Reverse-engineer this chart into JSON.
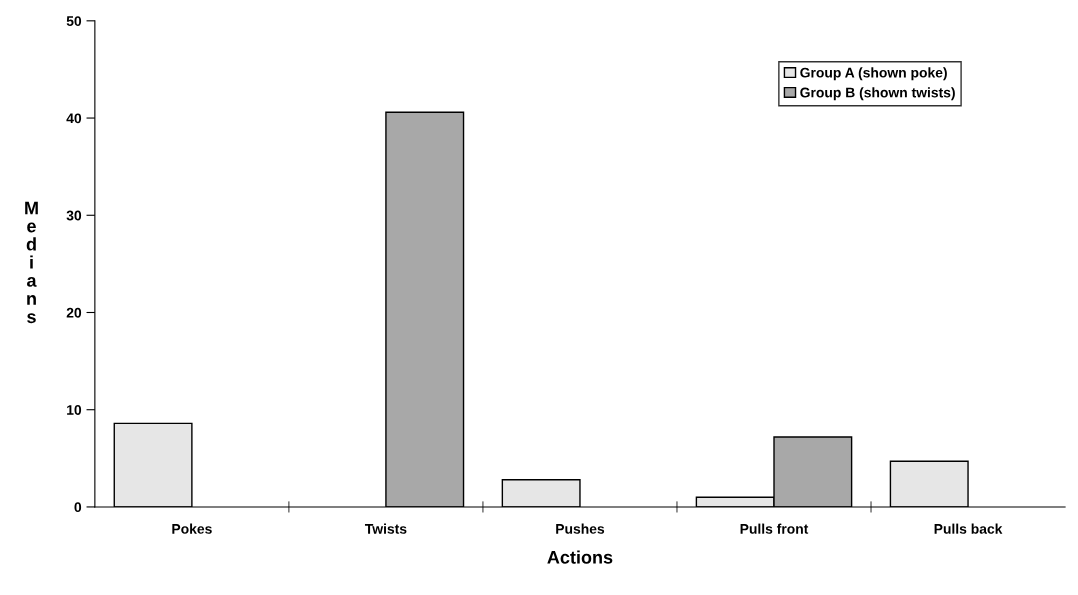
{
  "chart_data": {
    "type": "bar",
    "xlabel": "Actions",
    "ylabel": "Medians",
    "categories": [
      "Pokes",
      "Twists",
      "Pushes",
      "Pulls front",
      "Pulls back"
    ],
    "series": [
      {
        "name": "Group A (shown poke)",
        "color": "#e6e6e6",
        "values": [
          8.6,
          null,
          2.8,
          1.0,
          4.7
        ]
      },
      {
        "name": "Group B (shown twists)",
        "color": "#a8a8a8",
        "values": [
          null,
          40.6,
          null,
          7.2,
          null
        ]
      }
    ],
    "ylim": [
      0,
      50
    ],
    "yticks": [
      0,
      10,
      20,
      30,
      40,
      50
    ],
    "grid": false,
    "legend": "top right"
  }
}
